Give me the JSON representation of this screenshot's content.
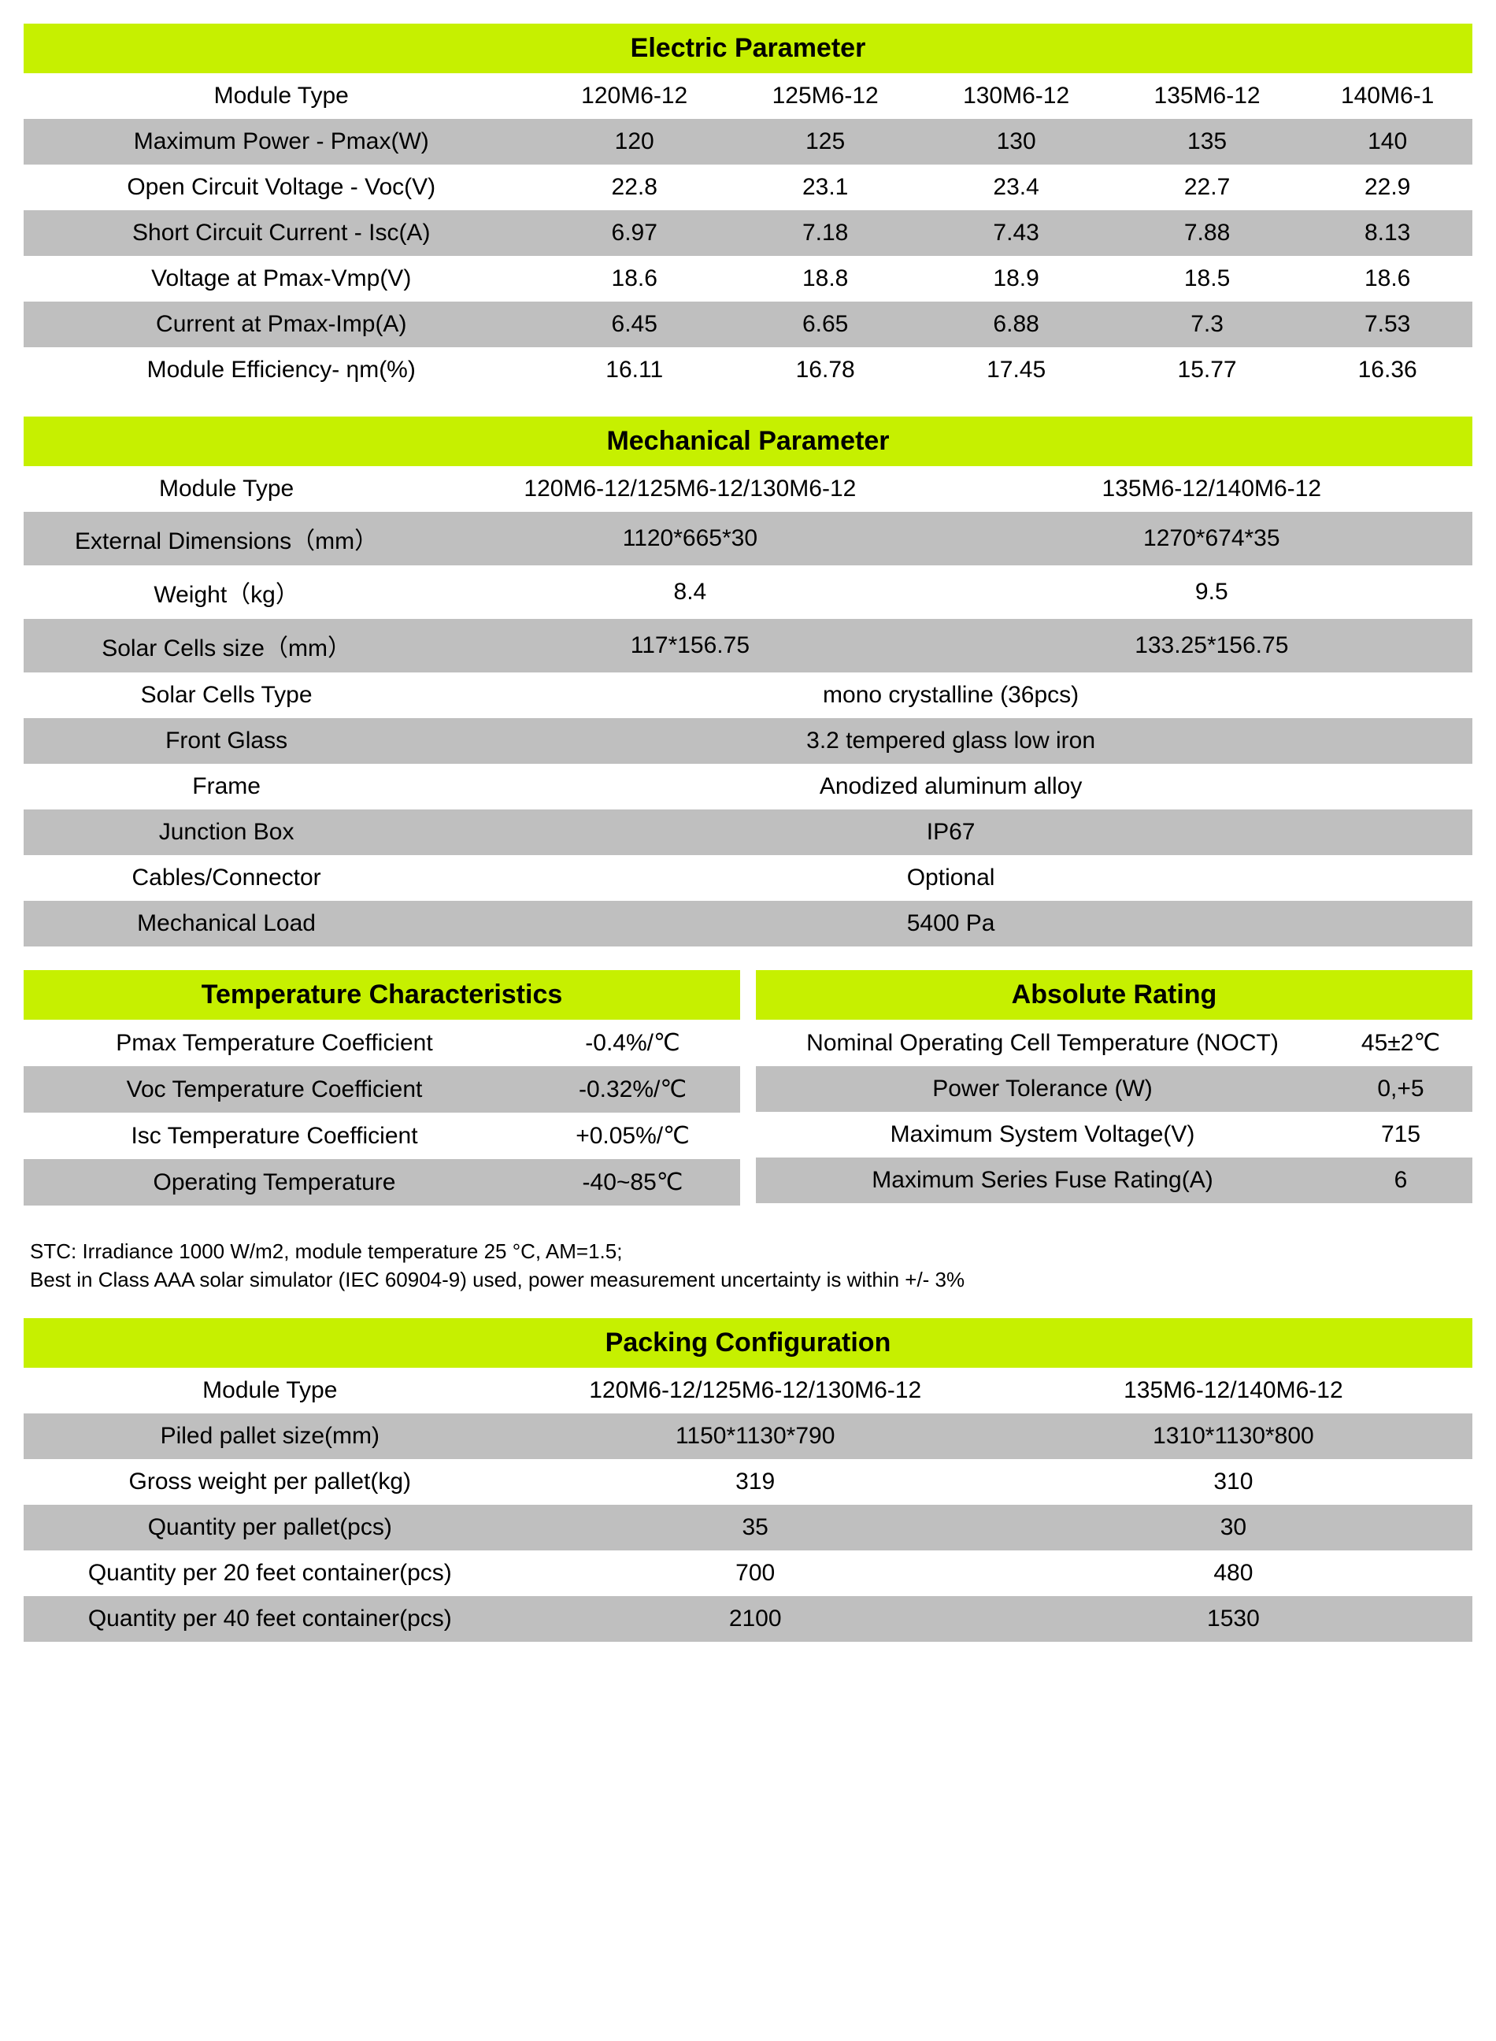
{
  "colors": {
    "header_bg": "#c6f000",
    "header_text": "#000000",
    "row_grey": "#bfbfbf",
    "row_white": "#ffffff",
    "text": "#000000"
  },
  "typography": {
    "header_fontsize": 34,
    "cell_fontsize": 30,
    "footnote_fontsize": 26,
    "header_fontweight": "bold"
  },
  "electric": {
    "title": "Electric Parameter",
    "columns": [
      "Module Type",
      "120M6-12",
      "125M6-12",
      "130M6-12",
      "135M6-12",
      "140M6-1"
    ],
    "rows": [
      {
        "label": "Maximum Power - Pmax(W)",
        "values": [
          "120",
          "125",
          "130",
          "135",
          "140"
        ],
        "bg": "grey"
      },
      {
        "label": "Open Circuit Voltage - Voc(V)",
        "values": [
          "22.8",
          "23.1",
          "23.4",
          "22.7",
          "22.9"
        ],
        "bg": "white"
      },
      {
        "label": "Short Circuit Current - Isc(A)",
        "values": [
          "6.97",
          "7.18",
          "7.43",
          "7.88",
          "8.13"
        ],
        "bg": "grey"
      },
      {
        "label": "Voltage at Pmax-Vmp(V)",
        "values": [
          "18.6",
          "18.8",
          "18.9",
          "18.5",
          "18.6"
        ],
        "bg": "white"
      },
      {
        "label": "Current at Pmax-Imp(A)",
        "values": [
          "6.45",
          "6.65",
          "6.88",
          "7.3",
          "7.53"
        ],
        "bg": "grey"
      },
      {
        "label": "Module Efficiency- ηm(%)",
        "values": [
          "16.11",
          "16.78",
          "17.45",
          "15.77",
          "16.36"
        ],
        "bg": "white"
      }
    ]
  },
  "mechanical": {
    "title": "Mechanical Parameter",
    "columns": [
      "Module Type",
      "120M6-12/125M6-12/130M6-12",
      "135M6-12/140M6-12"
    ],
    "rows_split": [
      {
        "label": "External Dimensions（mm）",
        "values": [
          "1120*665*30",
          "1270*674*35"
        ],
        "bg": "grey"
      },
      {
        "label": "Weight（kg）",
        "values": [
          "8.4",
          "9.5"
        ],
        "bg": "white"
      },
      {
        "label": "Solar Cells size（mm）",
        "values": [
          "117*156.75",
          "133.25*156.75"
        ],
        "bg": "grey"
      }
    ],
    "rows_full": [
      {
        "label": "Solar  Cells Type",
        "value": "mono crystalline  (36pcs)",
        "bg": "white"
      },
      {
        "label": "Front Glass",
        "value": "3.2  tempered glass low iron",
        "bg": "grey"
      },
      {
        "label": "Frame",
        "value": "Anodized aluminum alloy",
        "bg": "white"
      },
      {
        "label": "Junction Box",
        "value": "IP67",
        "bg": "grey"
      },
      {
        "label": "Cables/Connector",
        "value": "Optional",
        "bg": "white"
      },
      {
        "label": "Mechanical Load",
        "value": "5400 Pa",
        "bg": "grey"
      }
    ]
  },
  "temperature": {
    "title": "Temperature Characteristics",
    "rows": [
      {
        "label": "Pmax Temperature Coefficient",
        "value": "-0.4%/℃",
        "bg": "white"
      },
      {
        "label": "Voc Temperature Coefficient",
        "value": "-0.32%/℃",
        "bg": "grey"
      },
      {
        "label": "Isc Temperature Coefficient",
        "value": "+0.05%/℃",
        "bg": "white"
      },
      {
        "label": "Operating Temperature",
        "value": "-40~85℃",
        "bg": "grey"
      }
    ]
  },
  "absolute": {
    "title": "Absolute Rating",
    "rows": [
      {
        "label": "Nominal Operating Cell Temperature (NOCT)",
        "value": "45±2℃",
        "bg": "white"
      },
      {
        "label": "Power Tolerance (W)",
        "value": "0,+5",
        "bg": "grey"
      },
      {
        "label": "Maximum System Voltage(V)",
        "value": "715",
        "bg": "white"
      },
      {
        "label": "Maximum Series Fuse Rating(A)",
        "value": "6",
        "bg": "grey"
      }
    ]
  },
  "footnote": {
    "line1": "STC: Irradiance 1000 W/m2, module temperature 25 °C, AM=1.5;",
    "line2": "Best in Class AAA solar simulator (IEC 60904-9) used, power measurement uncertainty is within +/- 3%"
  },
  "packing": {
    "title": "Packing Configuration",
    "columns": [
      "Module Type",
      "120M6-12/125M6-12/130M6-12",
      "135M6-12/140M6-12"
    ],
    "rows": [
      {
        "label": "Piled pallet size(mm)",
        "values": [
          "1150*1130*790",
          "1310*1130*800"
        ],
        "bg": "grey"
      },
      {
        "label": "Gross weight per pallet(kg)",
        "values": [
          "319",
          "310"
        ],
        "bg": "white"
      },
      {
        "label": "Quantity per pallet(pcs)",
        "values": [
          "35",
          "30"
        ],
        "bg": "grey"
      },
      {
        "label": "Quantity per 20 feet container(pcs)",
        "values": [
          "700",
          "480"
        ],
        "bg": "white"
      },
      {
        "label": "Quantity per 40 feet container(pcs)",
        "values": [
          "2100",
          "1530"
        ],
        "bg": "grey"
      }
    ]
  }
}
